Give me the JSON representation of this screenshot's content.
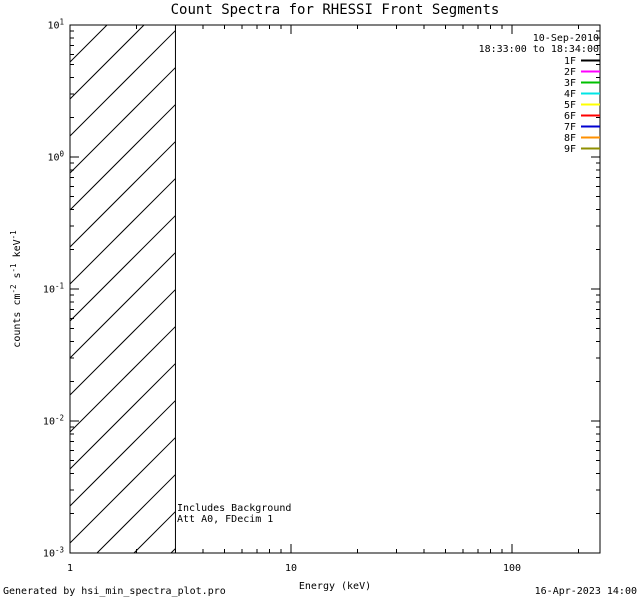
{
  "footer": {
    "left": "Generated by hsi_min_spectra_plot.pro",
    "right": "16-Apr-2023 14:00"
  },
  "chart_data": {
    "type": "line",
    "title": "Count Spectra for RHESSI Front Segments",
    "xlabel": "Energy (keV)",
    "ylabel": "counts cm^-2 s^-1 keV^-1",
    "x_scale": "log",
    "y_scale": "log",
    "xlim": [
      1,
      250
    ],
    "ylim": [
      0.001,
      10
    ],
    "x_major_ticks": [
      1,
      10,
      100
    ],
    "y_major_ticks": [
      0.001,
      0.01,
      0.1,
      1,
      10
    ],
    "grid": false,
    "legend_position": "top-right",
    "legend_header": [
      "10-Sep-2010",
      "18:33:00 to 18:34:00"
    ],
    "series": [
      {
        "name": "1F",
        "color": "#000000",
        "points": []
      },
      {
        "name": "2F",
        "color": "#ff00ff",
        "points": []
      },
      {
        "name": "3F",
        "color": "#00c000",
        "points": []
      },
      {
        "name": "4F",
        "color": "#00e5e5",
        "points": []
      },
      {
        "name": "5F",
        "color": "#ffff00",
        "points": []
      },
      {
        "name": "6F",
        "color": "#ff0000",
        "points": []
      },
      {
        "name": "7F",
        "color": "#0000d0",
        "points": []
      },
      {
        "name": "8F",
        "color": "#ff9000",
        "points": []
      },
      {
        "name": "9F",
        "color": "#8f8f00",
        "points": []
      }
    ],
    "hatched_region": {
      "x_start": 1,
      "x_end": 3,
      "hatch": "diagonal"
    },
    "annotations": [
      "Includes Background",
      "Att A0, FDecim 1"
    ]
  }
}
